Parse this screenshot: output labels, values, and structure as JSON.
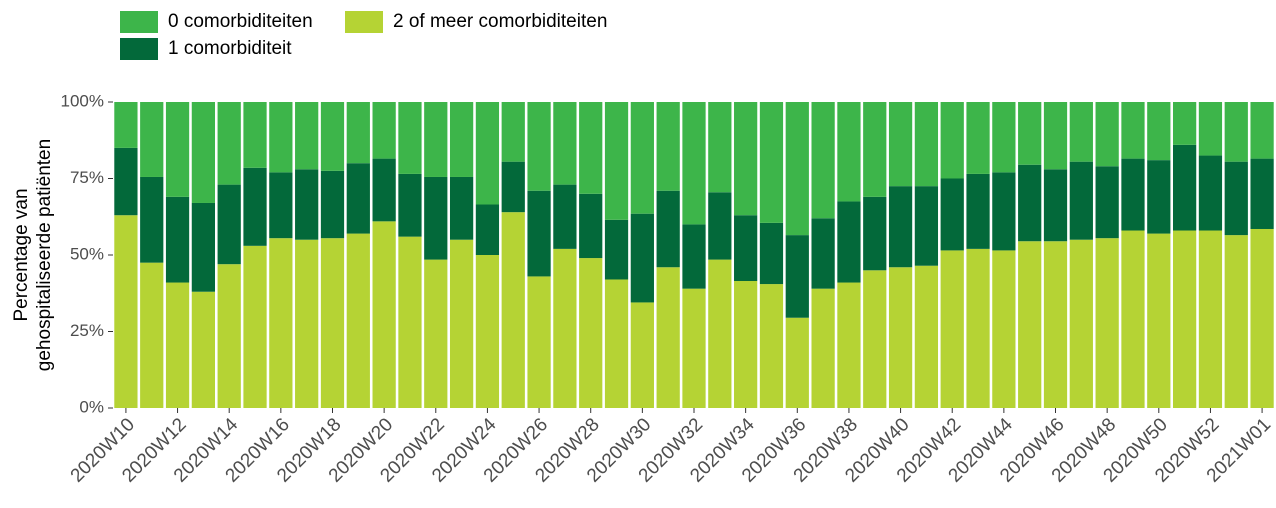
{
  "chart_data": {
    "type": "stacked_bar",
    "ylabel": [
      "Percentage van",
      "gehospitaliseerde patiënten"
    ],
    "categories": [
      "2020W10",
      null,
      "2020W12",
      null,
      "2020W14",
      null,
      "2020W16",
      null,
      "2020W18",
      null,
      "2020W20",
      null,
      "2020W22",
      null,
      "2020W24",
      null,
      "2020W26",
      null,
      "2020W28",
      null,
      "2020W30",
      null,
      "2020W32",
      null,
      "2020W34",
      null,
      "2020W36",
      null,
      "2020W38",
      null,
      "2020W40",
      null,
      "2020W42",
      null,
      "2020W44",
      null,
      "2020W46",
      null,
      "2020W48",
      null,
      "2020W50",
      null,
      "2020W52",
      null,
      "2021W01"
    ],
    "series": [
      {
        "name": "2 of meer comorbiditeiten",
        "color": "#b5d334",
        "values": [
          63,
          47.5,
          41,
          38,
          47,
          53,
          55.5,
          55,
          55.5,
          57,
          61,
          56,
          48.5,
          55,
          50,
          64,
          43,
          52,
          49,
          42,
          34.5,
          46,
          39,
          48.5,
          41.5,
          40.5,
          29.5,
          39,
          41,
          45,
          46,
          46.5,
          51.5,
          52,
          51.5,
          54.5,
          54.5,
          55,
          55.5,
          58,
          57,
          58,
          58,
          56.5,
          58.5
        ]
      },
      {
        "name": "1 comorbiditeit",
        "color": "#03693a",
        "values": [
          22,
          28,
          28,
          29,
          26,
          25.5,
          21.5,
          23,
          22,
          23,
          20.5,
          20.5,
          27,
          20.5,
          16.5,
          16.5,
          28,
          21,
          21,
          19.5,
          29,
          25,
          21,
          22,
          21.5,
          20,
          27,
          23,
          26.5,
          24,
          26.5,
          26,
          23.5,
          24.5,
          25.5,
          25,
          23.5,
          25.5,
          23.5,
          23.5,
          24,
          28,
          24.5,
          24,
          23
        ]
      },
      {
        "name": "0 comorbiditeiten",
        "color": "#3db54a",
        "values": [
          15,
          24.5,
          31,
          33,
          27,
          21.5,
          23,
          22,
          22.5,
          20,
          18.5,
          23.5,
          24.5,
          24.5,
          33.5,
          19.5,
          29,
          27,
          30,
          38.5,
          36.5,
          29,
          40,
          29.5,
          37,
          39.5,
          43.5,
          38,
          32.5,
          31,
          27.5,
          27.5,
          25,
          23.5,
          23,
          20.5,
          22,
          19.5,
          21,
          18.5,
          19,
          14,
          17.5,
          19.5,
          18.5
        ]
      }
    ],
    "ylim": [
      0,
      100
    ],
    "yticks": [
      {
        "value": 0,
        "label": "0%"
      },
      {
        "value": 25,
        "label": "25%"
      },
      {
        "value": 50,
        "label": "50%"
      },
      {
        "value": 75,
        "label": "75%"
      },
      {
        "value": 100,
        "label": "100%"
      }
    ],
    "legend": "top-left"
  }
}
